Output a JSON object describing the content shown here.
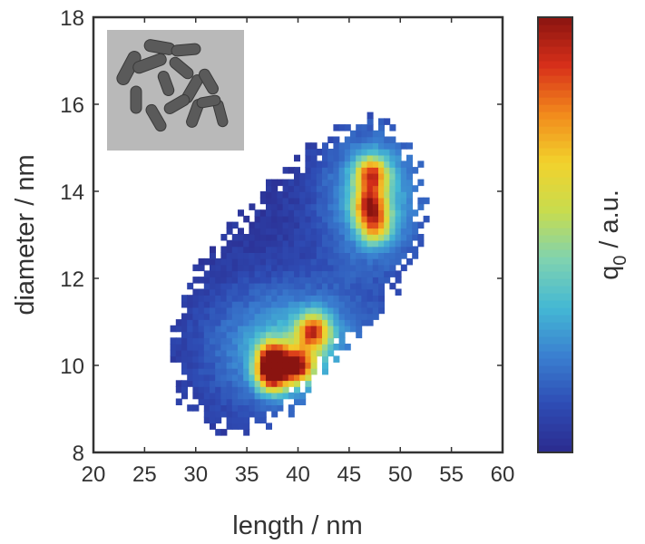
{
  "chart_data": {
    "type": "heatmap",
    "xlabel": "length / nm",
    "ylabel": "diameter / nm",
    "xlim": [
      20,
      60
    ],
    "ylim": [
      8,
      18
    ],
    "x_ticks": [
      20,
      25,
      30,
      35,
      40,
      45,
      50,
      55,
      60
    ],
    "y_ticks": [
      8,
      10,
      12,
      14,
      16,
      18
    ],
    "colorbar": {
      "label_main": "q",
      "label_sub": "0",
      "label_unit": " / a.u.",
      "colors": [
        "#2b2a8e",
        "#2e4cb4",
        "#3a7fd0",
        "#44b8d4",
        "#7fd3b0",
        "#c8dc4e",
        "#f2d22c",
        "#f28a1c",
        "#d8301a",
        "#8a1410"
      ]
    },
    "inset": {
      "description_icon": "tem-nanorods-image",
      "background": "#b9b9b9"
    },
    "peaks": [
      {
        "length": 37.5,
        "diameter": 9.8,
        "intensity": 1.0
      },
      {
        "length": 40.0,
        "diameter": 10.0,
        "intensity": 0.9
      },
      {
        "length": 41.5,
        "diameter": 10.8,
        "intensity": 0.85
      },
      {
        "length": 37.5,
        "diameter": 10.2,
        "intensity": 0.8
      },
      {
        "length": 47.2,
        "diameter": 14.4,
        "intensity": 0.78
      },
      {
        "length": 47.0,
        "diameter": 13.7,
        "intensity": 0.75
      },
      {
        "length": 47.5,
        "diameter": 13.2,
        "intensity": 0.6
      }
    ],
    "clusters": [
      {
        "name": "",
        "center_length": 39.5,
        "center_diameter": 10.4,
        "spread_length": 5.5,
        "spread_diameter": 1.0
      },
      {
        "name": "",
        "center_length": 47.5,
        "center_diameter": 13.9,
        "spread_length": 3.5,
        "spread_diameter": 1.1
      }
    ]
  }
}
